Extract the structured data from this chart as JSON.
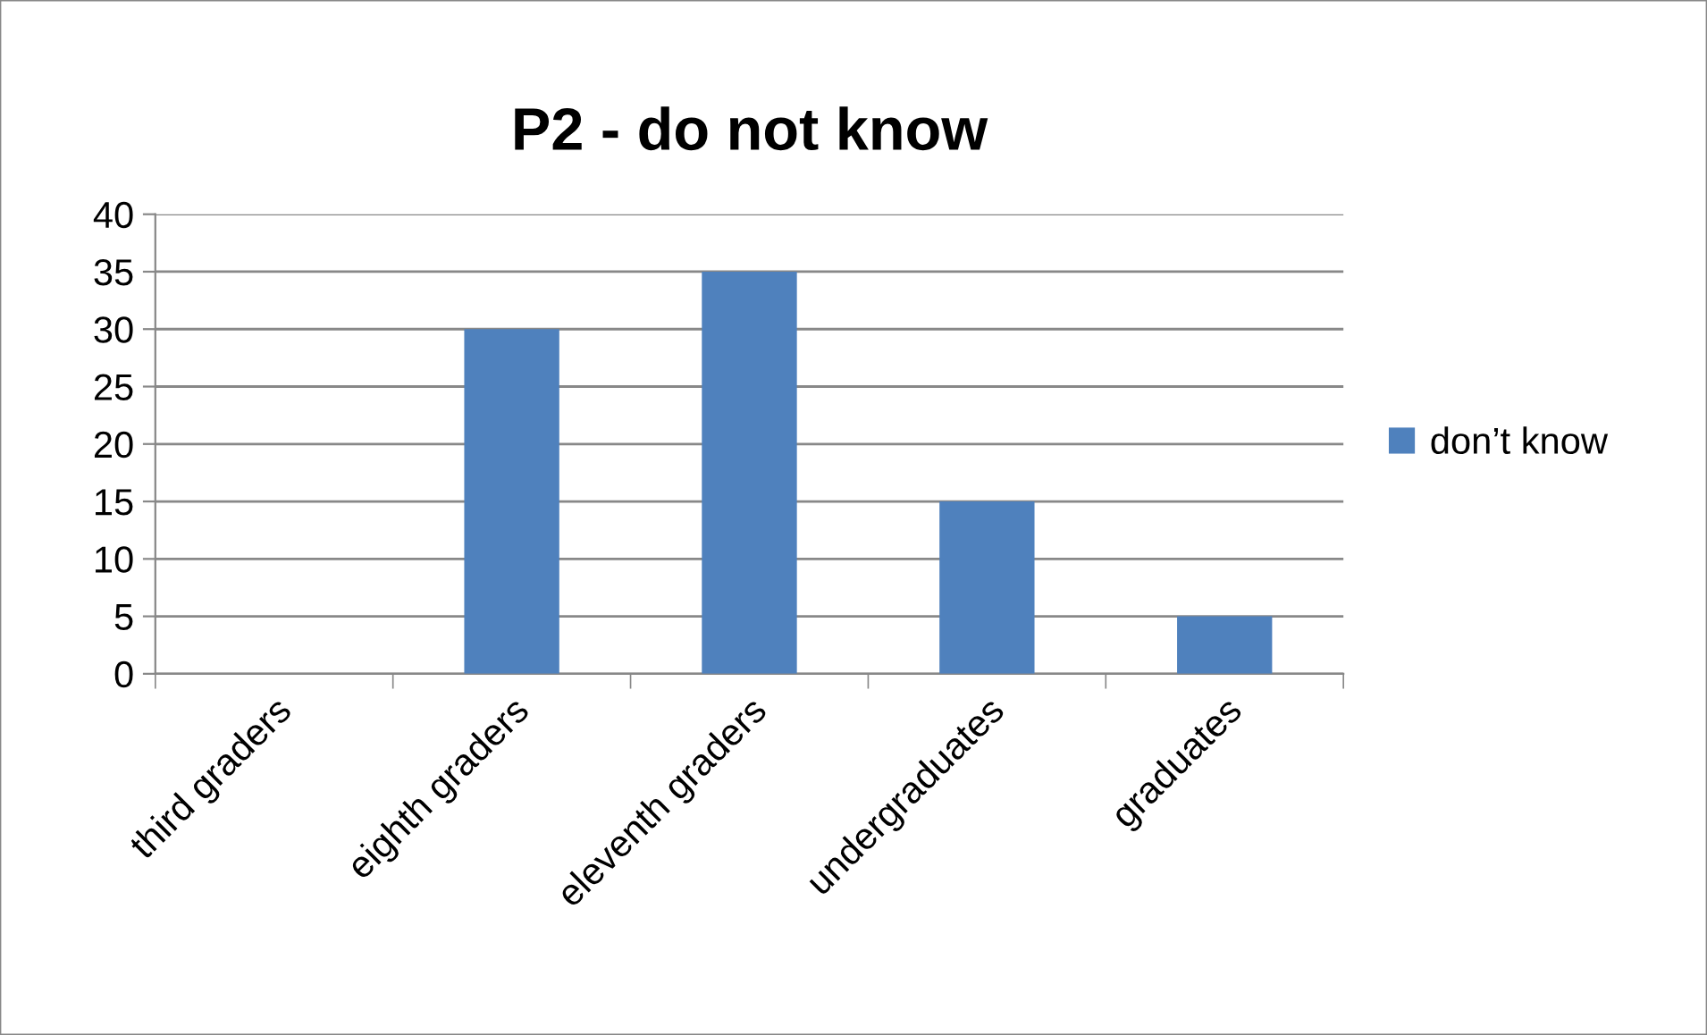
{
  "chart_data": {
    "type": "bar",
    "title": "P2 - do not know",
    "categories": [
      "third graders",
      "eighth graders",
      "eleventh graders",
      "undergraduates",
      "graduates"
    ],
    "series": [
      {
        "name": "don’t know",
        "color": "#4f81bd",
        "values": [
          0,
          30,
          35,
          15,
          5
        ]
      }
    ],
    "ylim": [
      0,
      40
    ],
    "yticks": [
      0,
      5,
      10,
      15,
      20,
      25,
      30,
      35,
      40
    ],
    "grid": "y",
    "legend": "right"
  }
}
